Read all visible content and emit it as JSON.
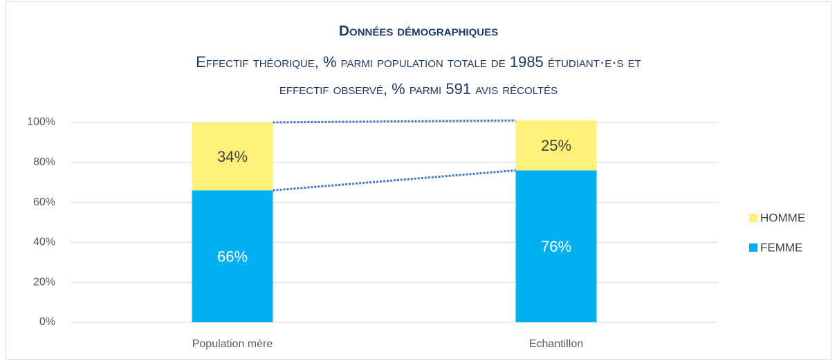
{
  "chart_data": {
    "type": "stacked_bar",
    "title": "Données démographiques",
    "subtitle": [
      "Effectif théorique, % parmi population totale de 1985 étudiant·e·s et",
      "effectif observé, % parmi 591 avis récoltés"
    ],
    "categories": [
      "Population mère",
      "Echantillon"
    ],
    "series": [
      {
        "name": "FEMME",
        "color": "#00b0f0",
        "values": [
          66,
          76
        ],
        "value_labels": [
          "66%",
          "76%"
        ],
        "label_color": "#ffffff"
      },
      {
        "name": "HOMME",
        "color": "#fff07a",
        "values": [
          34,
          25
        ],
        "value_labels": [
          "34%",
          "25%"
        ],
        "label_color": "#404040"
      }
    ],
    "ylim": [
      0,
      100
    ],
    "yticks": [
      {
        "value": 0,
        "label": "0%"
      },
      {
        "value": 20,
        "label": "20%"
      },
      {
        "value": 40,
        "label": "40%"
      },
      {
        "value": 60,
        "label": "60%"
      },
      {
        "value": 80,
        "label": "80%"
      },
      {
        "value": 100,
        "label": "100%"
      }
    ],
    "grid": true,
    "series_lines": true,
    "series_line_color": "#4472c4",
    "legend": "right"
  }
}
